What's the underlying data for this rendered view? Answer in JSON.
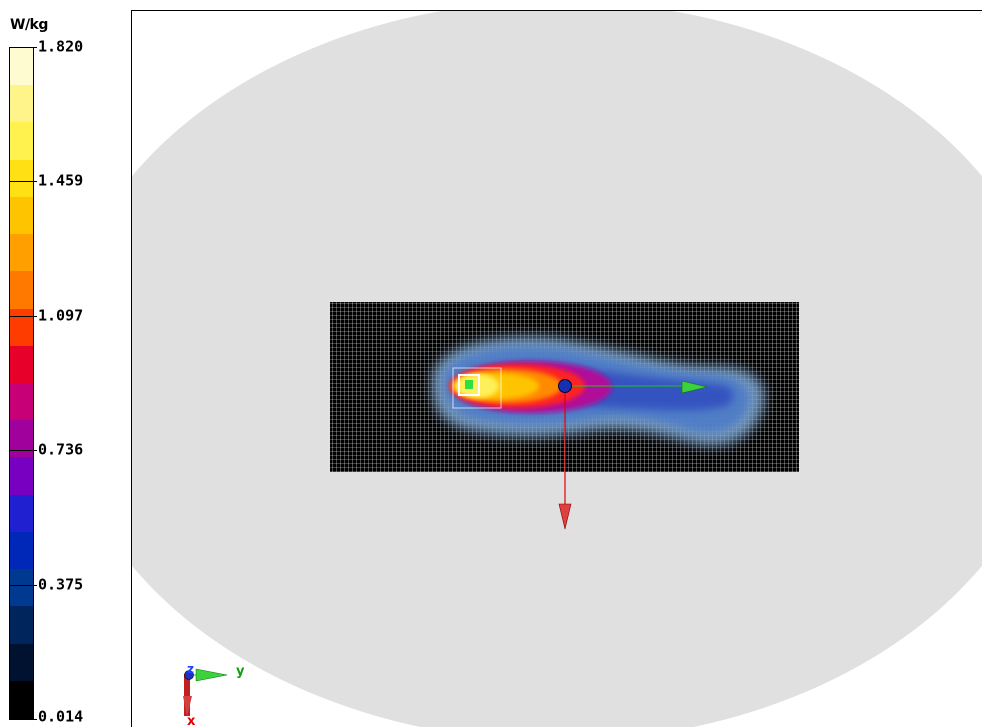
{
  "colorbar": {
    "unit": "W/kg",
    "tick_labels": [
      "1.820",
      "1.459",
      "1.097",
      "0.736",
      "0.375",
      "0.014"
    ],
    "colors": [
      "#fffbd0",
      "#fff48a",
      "#fff24e",
      "#ffe014",
      "#ffc400",
      "#ffa000",
      "#ff7800",
      "#ff3c00",
      "#e6002a",
      "#c80078",
      "#a0009c",
      "#7800c0",
      "#2020d0",
      "#0028b8",
      "#003a90",
      "#00245c",
      "#001230",
      "#000000"
    ]
  },
  "chart_data": {
    "type": "heatmap",
    "colorbar_range": [
      0.014,
      1.82
    ],
    "colorbar_ticks": [
      1.82,
      1.459,
      1.097,
      0.736,
      0.375,
      0.014
    ],
    "unit": "W/kg",
    "axis_labels": {
      "axis1": "y",
      "axis2": "z",
      "axis3": "x"
    },
    "background_color": "#e0e0e0",
    "grid_color": "#ffffff",
    "grid_background": "#000000"
  }
}
